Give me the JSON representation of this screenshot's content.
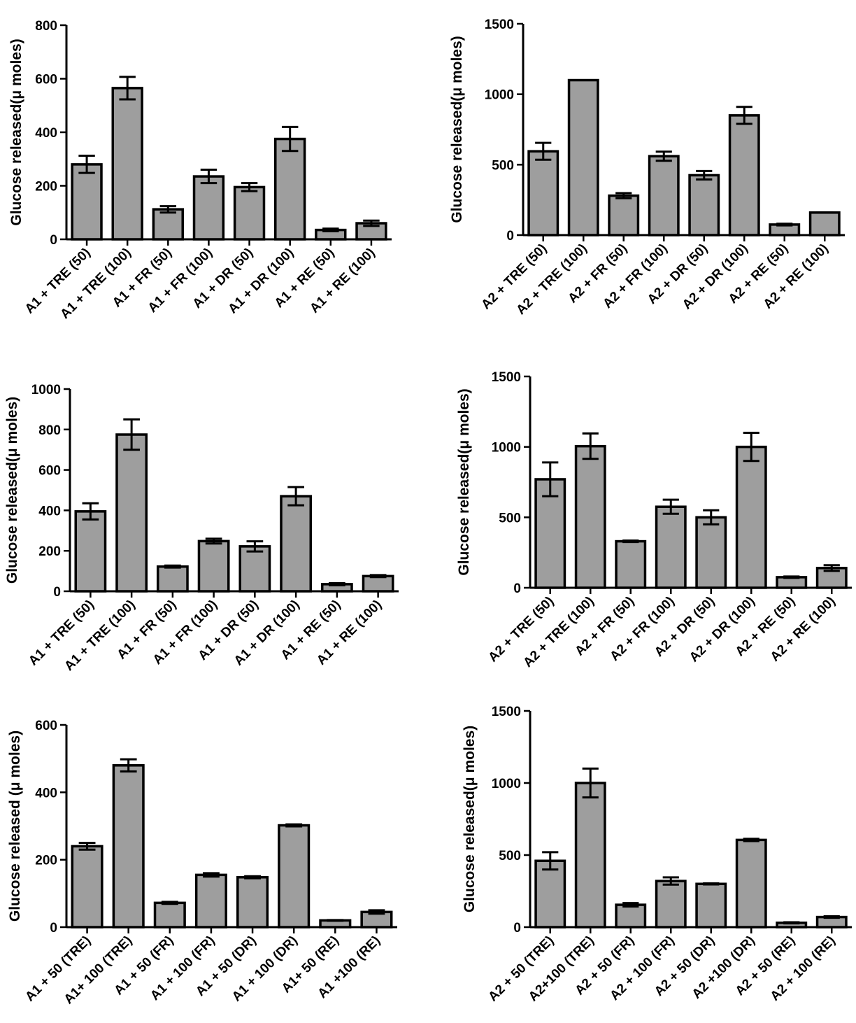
{
  "chart_data": [
    {
      "type": "bar",
      "ylabel": "Glucose released(μ moles)",
      "ylim": [
        0,
        800
      ],
      "yticks": [
        0,
        200,
        400,
        600,
        800
      ],
      "bar_color": "#9e9e9e",
      "categories": [
        "A1 + TRE (50)",
        "A1 + TRE (100)",
        "A1 + FR (50)",
        "A1 + FR (100)",
        "A1 + DR (50)",
        "A1 + DR (100)",
        "A1 + RE (50)",
        "A1 + RE (100)"
      ],
      "values": [
        280,
        565,
        112,
        235,
        195,
        375,
        35,
        60
      ],
      "errors": [
        32,
        42,
        12,
        25,
        15,
        45,
        5,
        10
      ]
    },
    {
      "type": "bar",
      "ylabel": "Glucose released(μ moles)",
      "ylim": [
        0,
        1500
      ],
      "yticks": [
        0,
        500,
        1000,
        1500
      ],
      "bar_color": "#9e9e9e",
      "categories": [
        "A2 + TRE (50)",
        "A2 + TRE (100)",
        "A2 + FR (50)",
        "A2 + FR (100)",
        "A2 + DR (50)",
        "A2 + DR (100)",
        "A2 + RE (50)",
        "A2 + RE (100)"
      ],
      "values": [
        595,
        1100,
        280,
        560,
        425,
        850,
        75,
        160
      ],
      "errors": [
        60,
        0,
        18,
        32,
        30,
        60,
        6,
        0
      ]
    },
    {
      "type": "bar",
      "ylabel": "Glucose released(μ moles)",
      "ylim": [
        0,
        1000
      ],
      "yticks": [
        0,
        200,
        400,
        600,
        800,
        1000
      ],
      "bar_color": "#9e9e9e",
      "categories": [
        "A1 + TRE (50)",
        "A1 + TRE (100)",
        "A1 + FR (50)",
        "A1 + FR (100)",
        "A1 + DR (50)",
        "A1 + DR (100)",
        "A1 + RE (50)",
        "A1 + RE (100)"
      ],
      "values": [
        395,
        775,
        122,
        248,
        222,
        470,
        35,
        75
      ],
      "errors": [
        40,
        75,
        5,
        12,
        25,
        45,
        5,
        5
      ]
    },
    {
      "type": "bar",
      "ylabel": "Glucose released(μ moles)",
      "ylim": [
        0,
        1500
      ],
      "yticks": [
        0,
        500,
        1000,
        1500
      ],
      "bar_color": "#9e9e9e",
      "categories": [
        "A2 + TRE (50)",
        "A2 + TRE (100)",
        "A2 + FR (50)",
        "A2 + FR (100)",
        "A2 + DR (50)",
        "A2 + DR (100)",
        "A2 + RE (50)",
        "A2 + RE (100)"
      ],
      "values": [
        770,
        1005,
        330,
        575,
        500,
        1000,
        75,
        140
      ],
      "errors": [
        120,
        90,
        5,
        50,
        50,
        100,
        5,
        20
      ]
    },
    {
      "type": "bar",
      "ylabel": "Glucose released (μ moles)",
      "ylim": [
        0,
        600
      ],
      "yticks": [
        0,
        200,
        400,
        600
      ],
      "bar_color": "#9e9e9e",
      "categories": [
        "A1 + 50 (TRE)",
        "A1+ 100 (TRE)",
        "A1 + 50 (FR)",
        "A1 + 100 (FR)",
        "A1 + 50 (DR)",
        "A1 + 100 (DR)",
        "A1+ 50 (RE)",
        "A1 +100 (RE)"
      ],
      "values": [
        240,
        480,
        72,
        155,
        148,
        302,
        20,
        45
      ],
      "errors": [
        10,
        18,
        3,
        5,
        3,
        3,
        1,
        5
      ]
    },
    {
      "type": "bar",
      "ylabel": "Glucose released(μ moles)",
      "ylim": [
        0,
        1500
      ],
      "yticks": [
        0,
        500,
        1000,
        1500
      ],
      "bar_color": "#9e9e9e",
      "categories": [
        "A2 + 50 (TRE)",
        "A2+100 (TRE)",
        "A2 + 50 (FR)",
        "A2 + 100 (FR)",
        "A2 + 50 (DR)",
        "A2 +100 (DR)",
        "A2 + 50 (RE)",
        "A2 + 100 (RE)"
      ],
      "values": [
        460,
        1000,
        155,
        320,
        300,
        605,
        30,
        70
      ],
      "errors": [
        60,
        100,
        12,
        25,
        4,
        8,
        4,
        5
      ]
    }
  ]
}
